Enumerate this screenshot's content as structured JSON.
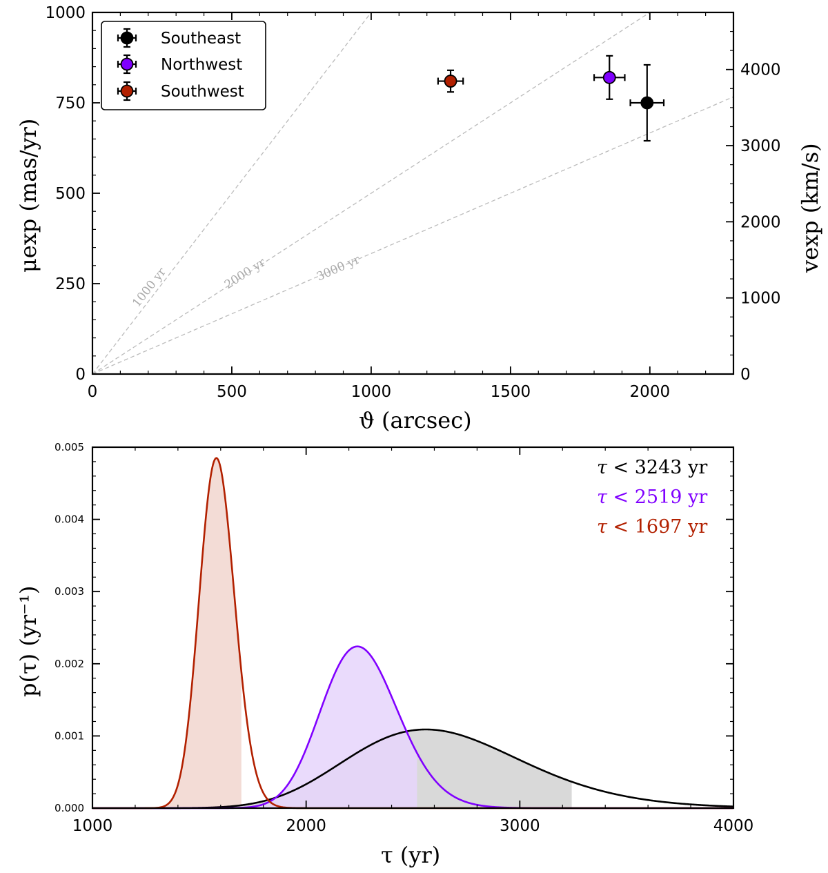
{
  "chart_data": [
    {
      "type": "scatter",
      "xlabel": "ϑ (arcsec)",
      "ylabel": "μexp (mas/yr)",
      "y2label": "vexp (km/s)",
      "xlim": [
        0,
        2300
      ],
      "ylim": [
        0,
        1000
      ],
      "y2lim": [
        0,
        4750
      ],
      "xticks": [
        "0",
        "500",
        "1000",
        "1500",
        "2000"
      ],
      "yticks": [
        "0",
        "250",
        "500",
        "750",
        "1000"
      ],
      "y2ticks": [
        "0",
        "1000",
        "2000",
        "3000",
        "4000"
      ],
      "legend_position": "top-left",
      "series": [
        {
          "name": "Southeast",
          "color": "#000000",
          "x": 1990,
          "y": 750,
          "xerr": 60,
          "yerr": 105
        },
        {
          "name": "Northwest",
          "color": "#8000ff",
          "x": 1855,
          "y": 820,
          "xerr": 55,
          "yerr": 60
        },
        {
          "name": "Southwest",
          "color": "#b22000",
          "x": 1285,
          "y": 810,
          "xerr": 45,
          "yerr": 30
        }
      ],
      "guide_lines": [
        {
          "label": "1000 yr",
          "age_yr": 1000
        },
        {
          "label": "2000 yr",
          "age_yr": 2000
        },
        {
          "label": "3000 yr",
          "age_yr": 3000
        }
      ]
    },
    {
      "type": "area",
      "xlabel": "τ (yr)",
      "ylabel": "p(τ) (yr⁻¹)",
      "xlim": [
        1000,
        4000
      ],
      "ylim": [
        0,
        0.005
      ],
      "xticks": [
        "1000",
        "2000",
        "3000",
        "4000"
      ],
      "yticks": [
        "0.000",
        "0.001",
        "0.002",
        "0.003",
        "0.004",
        "0.005"
      ],
      "series": [
        {
          "name": "Southeast",
          "color": "#000000",
          "fill": "#d9d9d9",
          "model": "lognormal",
          "peak_x": 2560,
          "peak_y": 0.00109,
          "sigma": 0.16,
          "upper_limit": 3243
        },
        {
          "name": "Northwest",
          "color": "#8000ff",
          "fill": "#e6d5fc",
          "model": "lognormal",
          "peak_x": 2240,
          "peak_y": 0.00224,
          "sigma": 0.08,
          "upper_limit": 2519
        },
        {
          "name": "Southwest",
          "color": "#b22000",
          "fill": "#f3dcd6",
          "model": "lognormal",
          "peak_x": 1580,
          "peak_y": 0.00485,
          "sigma": 0.052,
          "upper_limit": 1697
        }
      ],
      "annotations": [
        {
          "symbol": "τ",
          "relation": "<",
          "value": "3243",
          "unit": "yr",
          "color": "#000000"
        },
        {
          "symbol": "τ",
          "relation": "<",
          "value": "2519",
          "unit": "yr",
          "color": "#8000ff"
        },
        {
          "symbol": "τ",
          "relation": "<",
          "value": "1697",
          "unit": "yr",
          "color": "#b22000"
        }
      ]
    }
  ]
}
